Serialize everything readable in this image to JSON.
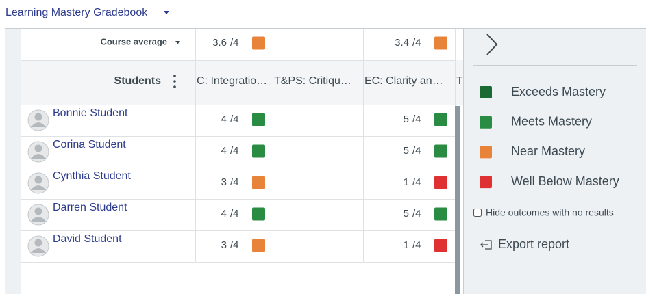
{
  "header": {
    "title": "Learning Mastery Gradebook"
  },
  "gradebook": {
    "average_label": "Course average",
    "students_label": "Students",
    "out_of": "/4",
    "columns": [
      {
        "name": "C: Integratio…",
        "average": "3.6",
        "average_level": 2
      },
      {
        "name": "T&PS: Critiqu…"
      },
      {
        "name": "EC: Clarity an…",
        "average": "3.4",
        "average_level": 2
      },
      {
        "name": "T"
      }
    ],
    "students": [
      {
        "name": "Bonnie Student",
        "scores": [
          {
            "column": 0,
            "score": 4,
            "level": 1
          },
          {
            "column": 2,
            "score": 5,
            "level": 1
          }
        ]
      },
      {
        "name": "Corina Student",
        "scores": [
          {
            "column": 0,
            "score": 4,
            "level": 1
          },
          {
            "column": 2,
            "score": 5,
            "level": 1
          }
        ]
      },
      {
        "name": "Cynthia Student",
        "scores": [
          {
            "column": 0,
            "score": 3,
            "level": 2
          },
          {
            "column": 2,
            "score": 1,
            "level": 3
          }
        ]
      },
      {
        "name": "Darren Student",
        "scores": [
          {
            "column": 0,
            "score": 4,
            "level": 1
          },
          {
            "column": 2,
            "score": 5,
            "level": 1
          }
        ]
      },
      {
        "name": "David Student",
        "scores": [
          {
            "column": 0,
            "score": 3,
            "level": 2
          },
          {
            "column": 2,
            "score": 1,
            "level": 3
          }
        ]
      }
    ]
  },
  "legend": [
    {
      "label": "Exceeds Mastery",
      "color": "#1c6a33"
    },
    {
      "label": "Meets Mastery",
      "color": "#2a8c42"
    },
    {
      "label": "Near Mastery",
      "color": "#e8833a"
    },
    {
      "label": "Well Below Mastery",
      "color": "#df3131"
    }
  ],
  "options": {
    "hide_label": "Hide outcomes with no results",
    "export_label": "Export report"
  }
}
